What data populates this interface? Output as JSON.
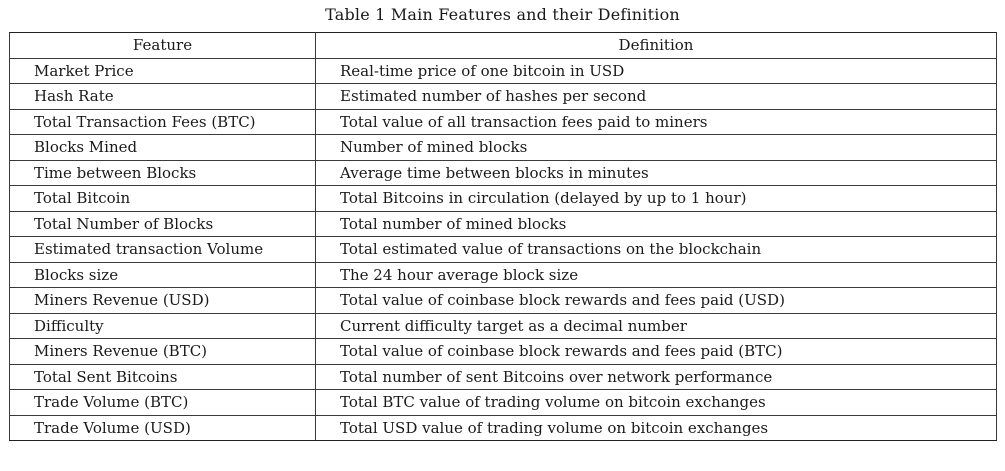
{
  "caption": "Table 1 Main Features and their Definition",
  "table": {
    "headers": [
      "Feature",
      "Definition"
    ],
    "rows": [
      [
        "Market Price",
        "Real-time price of one bitcoin in USD"
      ],
      [
        "Hash Rate",
        "Estimated number of hashes per second"
      ],
      [
        "Total Transaction Fees (BTC)",
        "Total value of all transaction fees paid to miners"
      ],
      [
        "Blocks Mined",
        "Number of mined blocks"
      ],
      [
        "Time between Blocks",
        "Average time between blocks in minutes"
      ],
      [
        "Total Bitcoin",
        "Total Bitcoins in circulation (delayed by up to 1 hour)"
      ],
      [
        "Total Number of Blocks",
        "Total number of mined blocks"
      ],
      [
        "Estimated transaction Volume",
        "Total estimated value of transactions on the blockchain"
      ],
      [
        "Blocks size",
        "The 24 hour average block size"
      ],
      [
        "Miners Revenue (USD)",
        "Total value of coinbase block rewards and fees paid (USD)"
      ],
      [
        "Difficulty",
        "Current difficulty target as a decimal number"
      ],
      [
        "Miners Revenue (BTC)",
        "Total value of coinbase block rewards and fees paid (BTC)"
      ],
      [
        "Total Sent Bitcoins",
        "Total number of sent Bitcoins over network performance"
      ],
      [
        "Trade Volume (BTC)",
        "Total BTC value of trading volume on bitcoin exchanges"
      ],
      [
        "Trade Volume (USD)",
        "Total USD value of trading volume on bitcoin exchanges"
      ]
    ]
  }
}
